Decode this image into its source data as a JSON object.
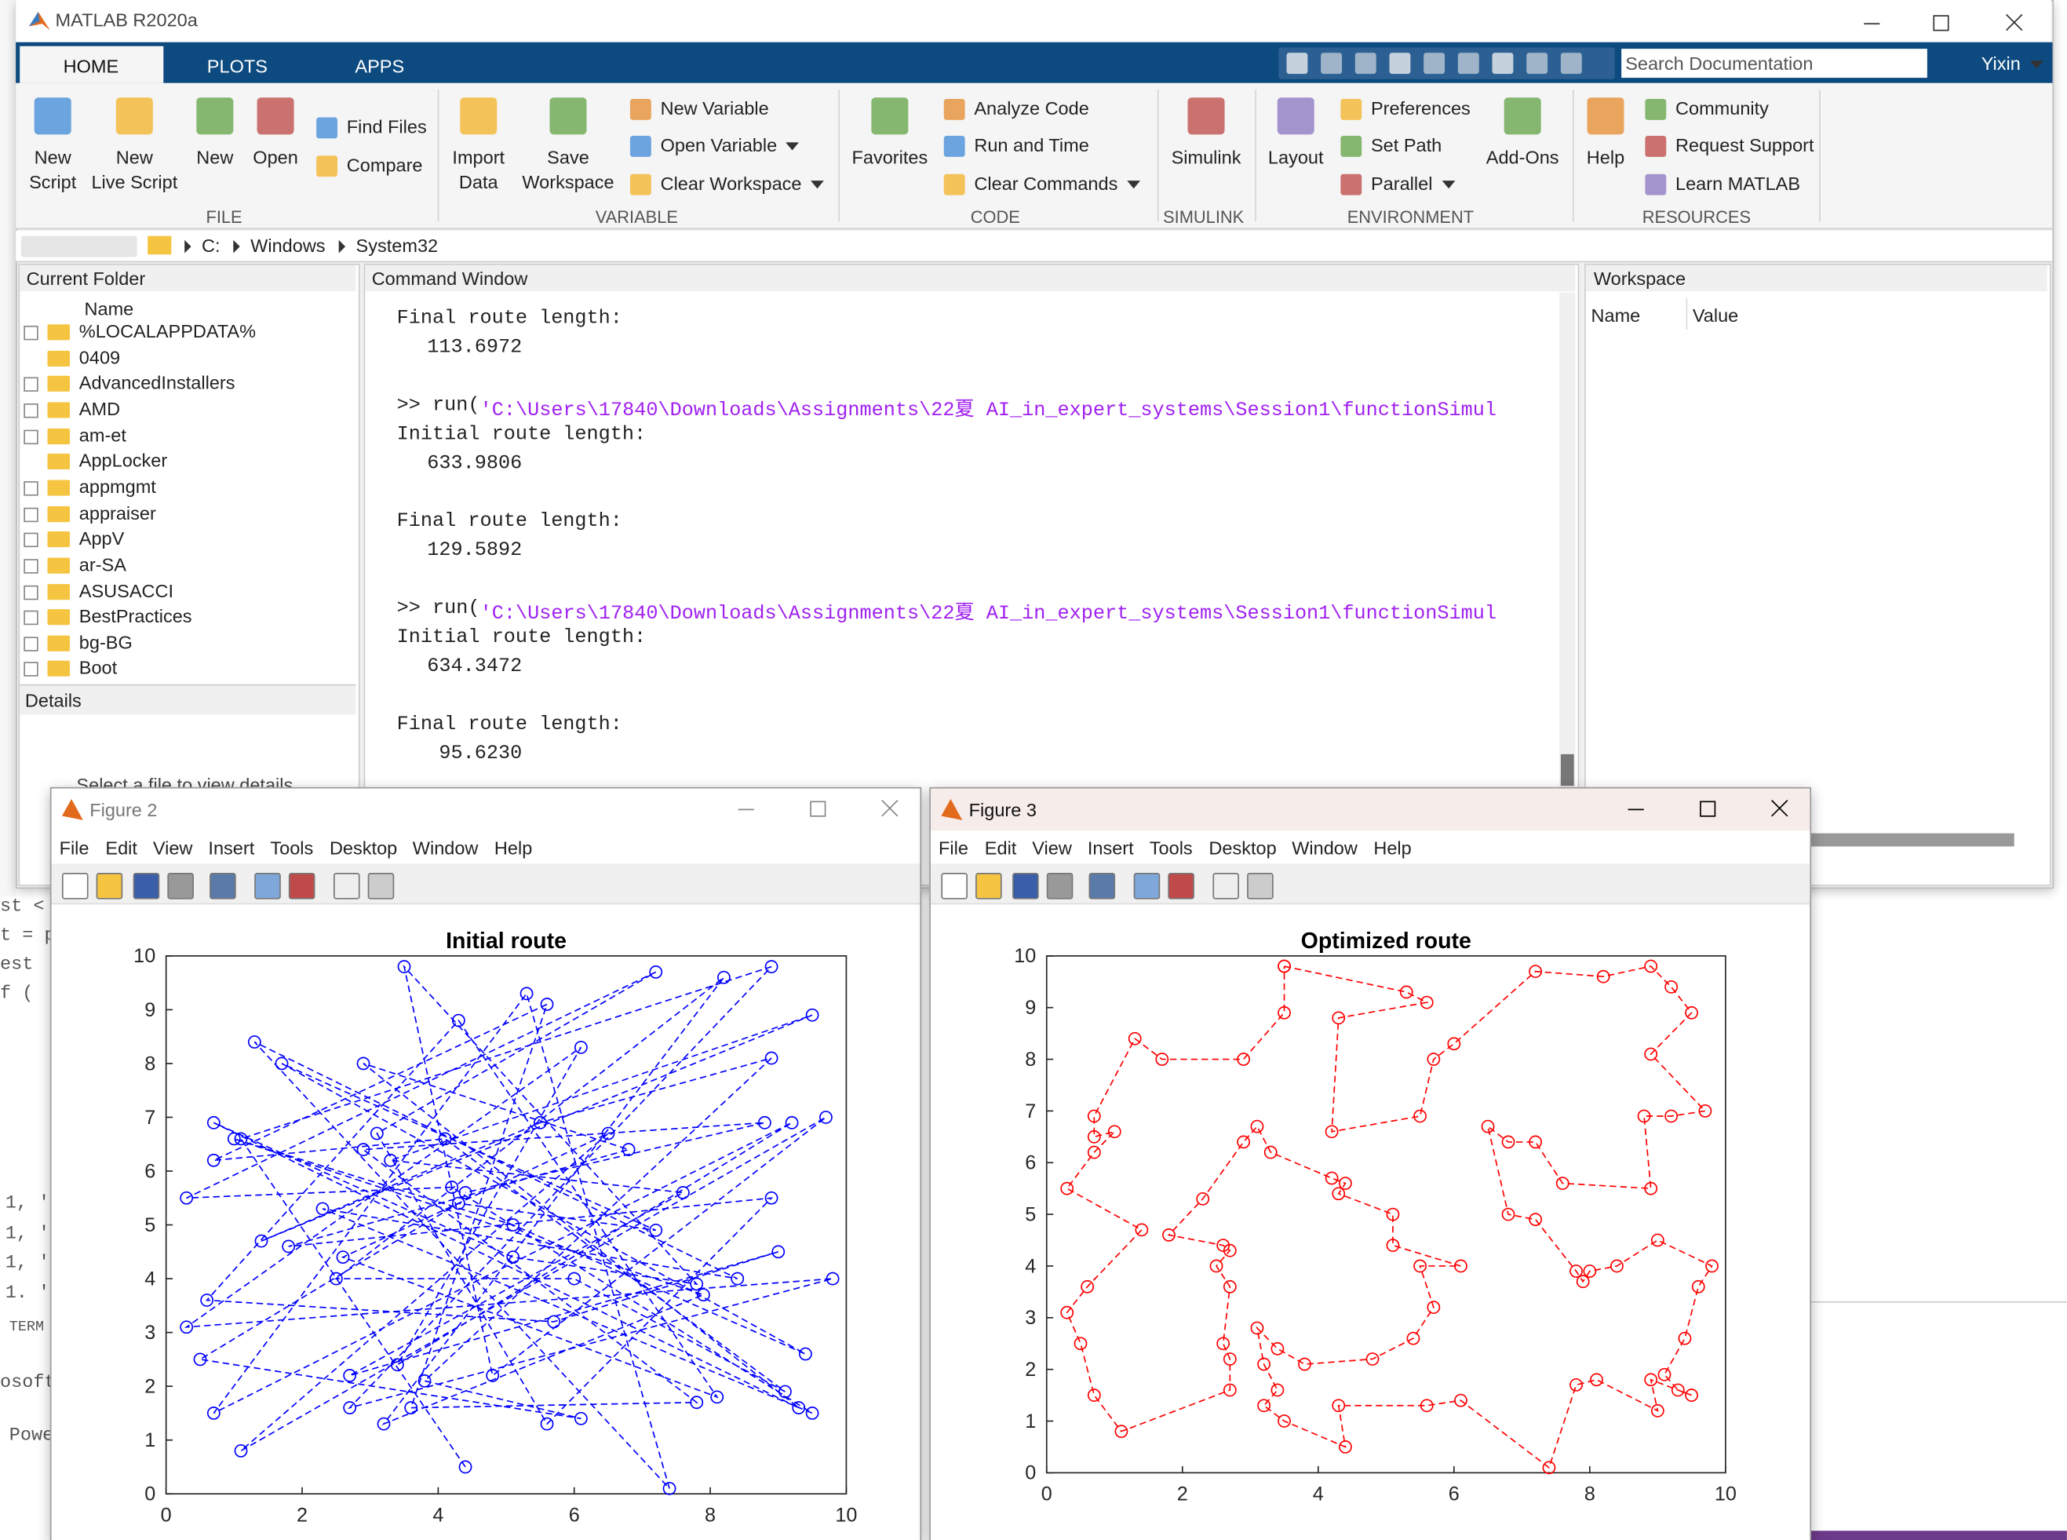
{
  "window": {
    "title": "MATLAB R2020a",
    "tabs": [
      "HOME",
      "PLOTS",
      "APPS"
    ],
    "search_placeholder": "Search Documentation",
    "user": "Yixin"
  },
  "toolstrip": {
    "groups": [
      {
        "label": "FILE",
        "items": [
          [
            "New",
            "Script"
          ],
          [
            "New",
            "Live Script"
          ],
          [
            "New"
          ],
          [
            "Open"
          ],
          [
            "Find Files"
          ],
          [
            "Compare"
          ]
        ]
      },
      {
        "label": "VARIABLE",
        "items": [
          [
            "Import",
            "Data"
          ],
          [
            "Save",
            "Workspace"
          ],
          [
            "New Variable"
          ],
          [
            "Open Variable"
          ],
          [
            "Clear Workspace"
          ]
        ]
      },
      {
        "label": "CODE",
        "items": [
          [
            "Favorites"
          ],
          [
            "Analyze Code"
          ],
          [
            "Run and Time"
          ],
          [
            "Clear Commands"
          ]
        ]
      },
      {
        "label": "SIMULINK",
        "items": [
          [
            "Simulink"
          ]
        ]
      },
      {
        "label": "ENVIRONMENT",
        "items": [
          [
            "Layout"
          ],
          [
            "Preferences"
          ],
          [
            "Set Path"
          ],
          [
            "Parallel"
          ],
          [
            "Add-Ons"
          ]
        ]
      },
      {
        "label": "RESOURCES",
        "items": [
          [
            "Help"
          ],
          [
            "Community"
          ],
          [
            "Request Support"
          ],
          [
            "Learn MATLAB"
          ]
        ]
      }
    ]
  },
  "address": [
    "C:",
    "Windows",
    "System32"
  ],
  "current_folder": {
    "title": "Current Folder",
    "column": "Name",
    "items": [
      {
        "name": "%LOCALAPPDATA%",
        "expandable": true
      },
      {
        "name": "0409",
        "expandable": false
      },
      {
        "name": "AdvancedInstallers",
        "expandable": true
      },
      {
        "name": "AMD",
        "expandable": true
      },
      {
        "name": "am-et",
        "expandable": true
      },
      {
        "name": "AppLocker",
        "expandable": false
      },
      {
        "name": "appmgmt",
        "expandable": true
      },
      {
        "name": "appraiser",
        "expandable": true
      },
      {
        "name": "AppV",
        "expandable": true
      },
      {
        "name": "ar-SA",
        "expandable": true
      },
      {
        "name": "ASUSACCI",
        "expandable": true
      },
      {
        "name": "BestPractices",
        "expandable": true
      },
      {
        "name": "bg-BG",
        "expandable": true
      },
      {
        "name": "Boot",
        "expandable": true
      }
    ],
    "details": "Details",
    "details_hint": "Select a file to view details"
  },
  "command_window": {
    "title": "Command Window",
    "blocks": [
      [
        "Final route length:",
        "113.6972"
      ],
      [
        {
          "prompt": ">> run(",
          "string": "'C:\\Users\\17840\\Downloads\\Assignments\\22夏 AI_in_expert_systems\\Session1\\functionSimul"
        },
        "Initial route length:",
        "633.9806"
      ],
      [
        "Final route length:",
        "129.5892"
      ],
      [
        {
          "prompt": ">> run(",
          "string": "'C:\\Users\\17840\\Downloads\\Assignments\\22夏 AI_in_expert_systems\\Session1\\functionSimul"
        },
        "Initial route length:",
        "634.3472"
      ],
      [
        "Final route length:",
        "95.6230"
      ]
    ]
  },
  "workspace": {
    "title": "Workspace",
    "columns": [
      "Name",
      "Value"
    ]
  },
  "background_fragments": [
    "st <",
    "t = p",
    "est",
    "f (",
    "1, '",
    "1, '",
    "1, '",
    "1. '",
    "TERM",
    "osoft",
    "Powe"
  ],
  "figures": [
    {
      "title": "Figure 2",
      "menu": [
        "File",
        "Edit",
        "View",
        "Insert",
        "Tools",
        "Desktop",
        "Window",
        "Help"
      ]
    },
    {
      "title": "Figure 3",
      "menu": [
        "File",
        "Edit",
        "View",
        "Insert",
        "Tools",
        "Desktop",
        "Window",
        "Help"
      ]
    }
  ],
  "chart_data": [
    {
      "type": "line",
      "title": "Initial route",
      "color": "#0000ff",
      "line_style": "dashed",
      "marker": "circle",
      "xlim": [
        0,
        10
      ],
      "ylim": [
        0,
        10
      ],
      "xticks": [
        0,
        2,
        4,
        6,
        8,
        10
      ],
      "yticks": [
        0,
        1,
        2,
        3,
        4,
        5,
        6,
        7,
        8,
        9,
        10
      ],
      "x": [
        4.4,
        1.1,
        8.9,
        2.7,
        9.8,
        0.3,
        6.1,
        3.4,
        9.2,
        0.7,
        5.3,
        7.4,
        1.3,
        8.4,
        2.3,
        9.5,
        4.2,
        0.3,
        7.2,
        3.1,
        5.6,
        8.9,
        1.8,
        6.8,
        2.9,
        9.3,
        0.7,
        5.1,
        7.8,
        3.5,
        4.8,
        9.7,
        1.1,
        6.5,
        2.6,
        8.1,
        4.3,
        0.6,
        5.7,
        9.0,
        2.7,
        7.6,
        3.3,
        9.5,
        1.4,
        5.5,
        8.9,
        3.8,
        6.1,
        0.5,
        4.3,
        7.2,
        1.7,
        9.4,
        5.1,
        1.0,
        7.9,
        3.2,
        8.2,
        2.5,
        6.0,
        9.1,
        4.1,
        0.7,
        5.6,
        3.6,
        7.8,
        2.9,
        8.8,
        4.4
      ],
      "values": [
        0.5,
        6.6,
        9.8,
        1.6,
        4.0,
        3.1,
        8.3,
        2.4,
        6.9,
        1.5,
        9.3,
        0.1,
        8.4,
        4.0,
        5.3,
        1.5,
        5.7,
        5.5,
        9.7,
        6.7,
        1.3,
        5.5,
        4.6,
        6.4,
        8.0,
        1.6,
        6.9,
        4.4,
        3.9,
        9.8,
        2.2,
        7.0,
        0.8,
        6.7,
        4.4,
        1.8,
        8.8,
        3.6,
        3.2,
        4.5,
        2.2,
        5.6,
        6.2,
        8.9,
        4.7,
        6.9,
        8.1,
        2.1,
        1.4,
        2.5,
        5.4,
        4.9,
        8.0,
        2.6,
        5.0,
        6.6,
        3.7,
        1.3,
        9.6,
        4.0,
        4.0,
        1.9,
        6.6,
        6.2,
        9.1,
        1.6,
        1.7,
        6.4,
        6.9,
        5.6
      ]
    },
    {
      "type": "line",
      "title": "Optimized route",
      "color": "#ff0000",
      "line_style": "dashed",
      "marker": "circle",
      "xlim": [
        0,
        10
      ],
      "ylim": [
        0,
        10
      ],
      "xticks": [
        0,
        2,
        4,
        6,
        8,
        10
      ],
      "yticks": [
        0,
        1,
        2,
        3,
        4,
        5,
        6,
        7,
        8,
        9,
        10
      ],
      "x": [
        3.5,
        5.3,
        5.6,
        4.3,
        4.2,
        5.5,
        5.7,
        6.0,
        7.2,
        8.2,
        8.9,
        9.2,
        9.5,
        8.9,
        9.7,
        9.2,
        8.8,
        8.9,
        7.6,
        7.2,
        6.8,
        6.5,
        6.8,
        7.2,
        7.8,
        7.9,
        8.0,
        8.4,
        9.0,
        9.8,
        9.6,
        9.4,
        9.1,
        9.3,
        9.5,
        8.9,
        9.0,
        8.1,
        7.8,
        7.4,
        6.1,
        5.6,
        4.3,
        4.4,
        3.5,
        3.2,
        3.4,
        3.2,
        3.1,
        3.4,
        3.8,
        4.8,
        5.4,
        5.7,
        5.5,
        6.1,
        5.1,
        5.1,
        4.3,
        4.4,
        4.2,
        3.3,
        3.1,
        2.9,
        2.3,
        1.8,
        2.6,
        2.7,
        2.5,
        2.7,
        2.6,
        2.7,
        2.7,
        1.1,
        0.7,
        0.5,
        0.3,
        0.6,
        1.4,
        0.3,
        0.7,
        1.0,
        0.7,
        0.7,
        1.3,
        1.7,
        2.9,
        3.5,
        3.5
      ],
      "values": [
        9.8,
        9.3,
        9.1,
        8.8,
        6.6,
        6.9,
        8.0,
        8.3,
        9.7,
        9.6,
        9.8,
        9.4,
        8.9,
        8.1,
        7.0,
        6.9,
        6.9,
        5.5,
        5.6,
        6.4,
        6.4,
        6.7,
        5.0,
        4.9,
        3.9,
        3.7,
        3.9,
        4.0,
        4.5,
        4.0,
        3.6,
        2.6,
        1.9,
        1.6,
        1.5,
        1.8,
        1.2,
        1.8,
        1.7,
        0.1,
        1.4,
        1.3,
        1.3,
        0.5,
        1.0,
        1.3,
        1.6,
        2.1,
        2.8,
        2.4,
        2.1,
        2.2,
        2.6,
        3.2,
        4.0,
        4.0,
        4.4,
        5.0,
        5.4,
        5.6,
        5.7,
        6.2,
        6.7,
        6.4,
        5.3,
        4.6,
        4.4,
        4.3,
        4.0,
        3.6,
        2.5,
        2.2,
        1.6,
        0.8,
        1.5,
        2.5,
        3.1,
        3.6,
        4.7,
        5.5,
        6.2,
        6.6,
        6.5,
        6.9,
        8.4,
        8.0,
        8.0,
        8.9,
        9.8
      ]
    }
  ]
}
